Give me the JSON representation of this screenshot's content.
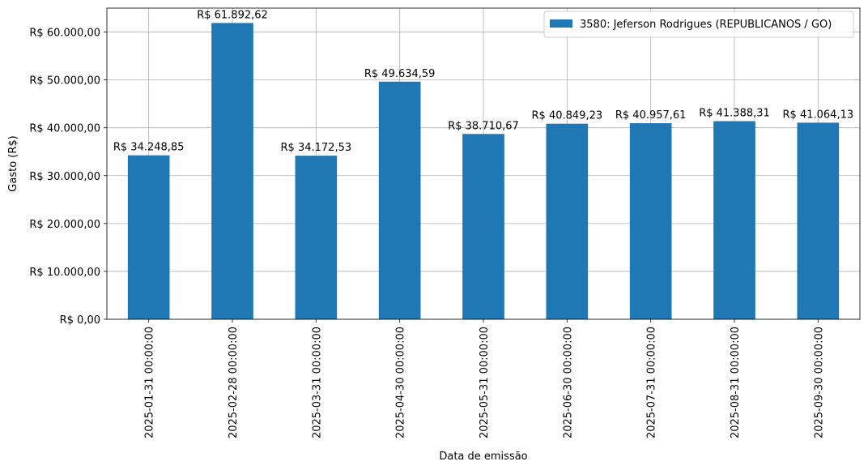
{
  "chart_data": {
    "type": "bar",
    "xlabel": "Data de emissão",
    "ylabel": "Gasto (R$)",
    "ylim": [
      0,
      65000
    ],
    "yticks": [
      0,
      10000,
      20000,
      30000,
      40000,
      50000,
      60000
    ],
    "ytick_labels": [
      "R$ 0,00",
      "R$ 10.000,00",
      "R$ 20.000,00",
      "R$ 30.000,00",
      "R$ 40.000,00",
      "R$ 50.000,00",
      "R$ 60.000,00"
    ],
    "grid": true,
    "legend_position": "top-right",
    "bar_color": "#1f77b4",
    "categories": [
      "2025-01-31 00:00:00",
      "2025-02-28 00:00:00",
      "2025-03-31 00:00:00",
      "2025-04-30 00:00:00",
      "2025-05-31 00:00:00",
      "2025-06-30 00:00:00",
      "2025-07-31 00:00:00",
      "2025-08-31 00:00:00",
      "2025-09-30 00:00:00"
    ],
    "series": [
      {
        "name": "3580: Jeferson Rodrigues (REPUBLICANOS / GO)",
        "values": [
          34248.85,
          61892.62,
          34172.53,
          49634.59,
          38710.67,
          40849.23,
          40957.61,
          41388.31,
          41064.13
        ],
        "data_labels": [
          "R$ 34.248,85",
          "R$ 61.892,62",
          "R$ 34.172,53",
          "R$ 49.634,59",
          "R$ 38.710,67",
          "R$ 40.849,23",
          "R$ 40.957,61",
          "R$ 41.388,31",
          "R$ 41.064,13"
        ]
      }
    ]
  }
}
